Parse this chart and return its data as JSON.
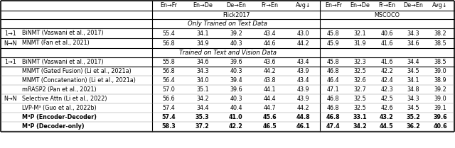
{
  "col_headers": [
    "En→Fr",
    "En→De",
    "De→En",
    "Fr→En",
    "Avg↓",
    "En→Fr",
    "En→De",
    "Fr→En",
    "De→En",
    "Avg↓"
  ],
  "dataset_labels": [
    "Flick2017",
    "MSCOCO"
  ],
  "section1_label": "Only Trained on Text Data",
  "section2_label": "Trained on Text and Vision Data",
  "rows_section1": [
    {
      "type_label": "1→1",
      "method": "BiNMT (Vaswani et al., 2017)",
      "method_color": "#000000",
      "bold": false,
      "ref_color": "#000000",
      "values": [
        55.4,
        34.1,
        39.2,
        43.4,
        43.0,
        45.8,
        32.1,
        40.6,
        34.3,
        38.2
      ]
    },
    {
      "type_label": "N→N",
      "method": "MNMT (Fan et al., 2021)",
      "method_color": "#000000",
      "bold": false,
      "ref_color": "#000000",
      "values": [
        56.8,
        34.9,
        40.3,
        44.6,
        44.2,
        45.9,
        31.9,
        41.6,
        34.6,
        38.5
      ]
    }
  ],
  "rows_section2": [
    {
      "type_label": "1→1",
      "method": "BiNMT (Vaswani et al., 2017)",
      "method_color": "#000000",
      "bold": false,
      "ref_color": "#000000",
      "values": [
        55.8,
        34.6,
        39.6,
        43.6,
        43.4,
        45.8,
        32.3,
        41.6,
        34.4,
        38.5
      ]
    },
    {
      "type_label": "N→N",
      "method": "MNMT (Gated Fusion) (Li et al., 2021a)",
      "method_color": "#000000",
      "bold": false,
      "ref_color": "#3399cc",
      "values": [
        56.8,
        34.3,
        40.3,
        44.2,
        43.9,
        46.8,
        32.5,
        42.2,
        34.5,
        39.0
      ]
    },
    {
      "type_label": "",
      "method": "MNMT (Concatenation) (Li et al., 2021a)",
      "method_color": "#000000",
      "bold": false,
      "ref_color": "#3399cc",
      "values": [
        56.4,
        34.0,
        39.4,
        43.8,
        43.4,
        46.4,
        32.6,
        42.4,
        34.1,
        38.9
      ]
    },
    {
      "type_label": "",
      "method": "mRASP2 (Pan et al., 2021)",
      "method_color": "#000000",
      "bold": false,
      "ref_color": "#3399cc",
      "values": [
        57.0,
        35.1,
        39.6,
        44.1,
        43.9,
        47.1,
        32.7,
        42.3,
        34.8,
        39.2
      ]
    },
    {
      "type_label": "",
      "method": "Selective Attn (Li et al., 2022)",
      "method_color": "#000000",
      "bold": false,
      "ref_color": "#3399cc",
      "values": [
        56.6,
        34.2,
        40.3,
        44.4,
        43.9,
        46.8,
        32.5,
        42.5,
        34.3,
        39.0
      ]
    },
    {
      "type_label": "",
      "method": "LVP-M³ (Guo et al., 2022b)",
      "method_color": "#000000",
      "bold": false,
      "ref_color": "#00aa00",
      "values": [
        57.4,
        34.4,
        40.4,
        44.7,
        44.2,
        46.8,
        32.5,
        42.6,
        34.5,
        39.1
      ]
    },
    {
      "type_label": "",
      "method": "M³P (Encoder-Decoder)",
      "method_color": "#000000",
      "bold": true,
      "ref_color": "#000000",
      "values": [
        57.4,
        35.3,
        41.0,
        45.6,
        44.8,
        46.8,
        33.1,
        43.2,
        35.2,
        39.6
      ]
    },
    {
      "type_label": "",
      "method": "M³P (Decoder-only)",
      "method_color": "#000000",
      "bold": true,
      "ref_color": "#000000",
      "values": [
        58.3,
        37.2,
        42.2,
        46.5,
        46.1,
        47.4,
        34.2,
        44.5,
        36.2,
        40.6
      ]
    }
  ],
  "background_color": "#ffffff"
}
